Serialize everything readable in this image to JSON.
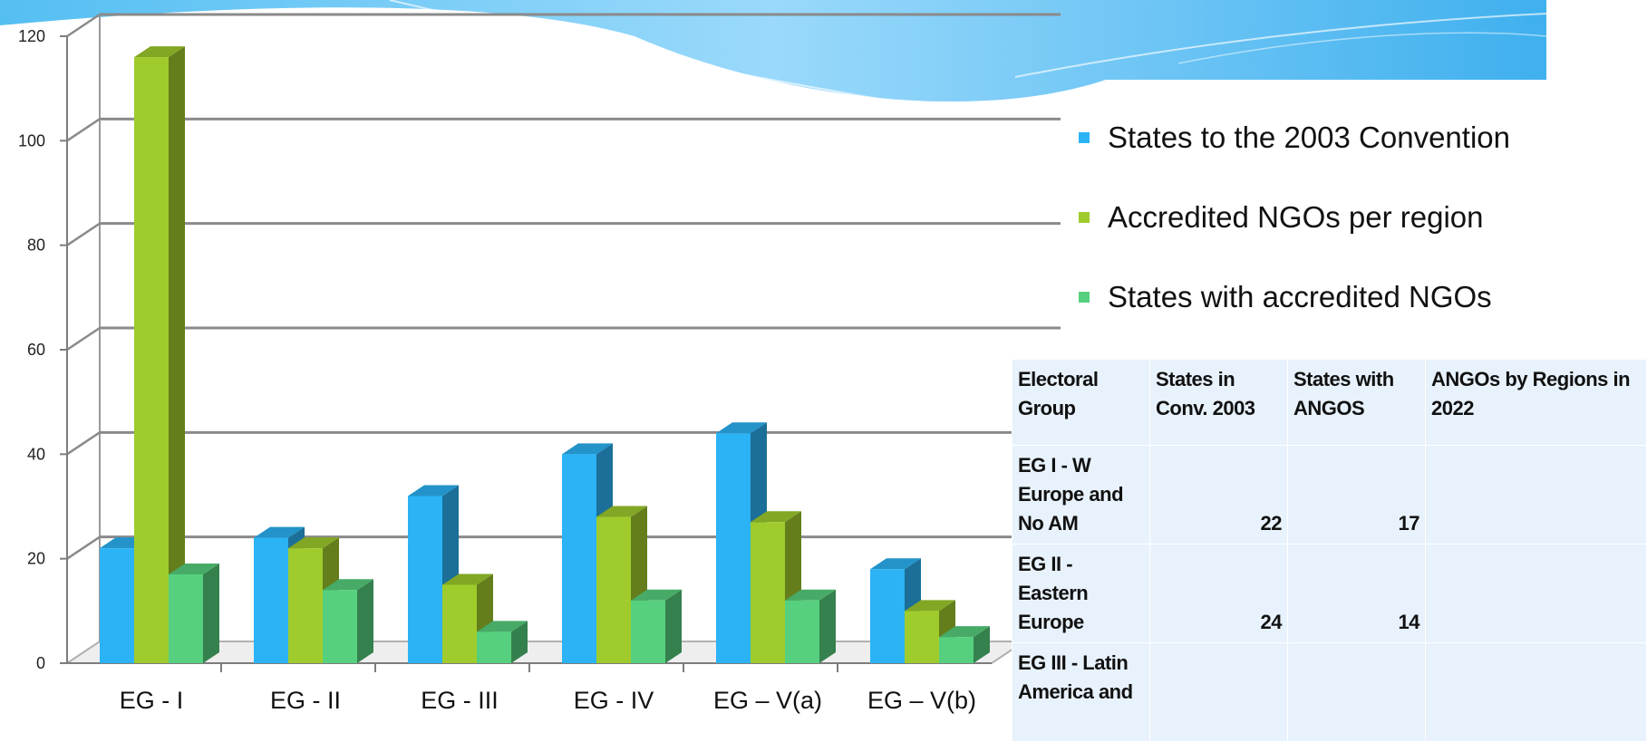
{
  "chart_data": {
    "type": "bar",
    "categories": [
      "EG - I",
      "EG - II",
      "EG - III",
      "EG - IV",
      "EG – V(a)",
      "EG – V(b)"
    ],
    "series": [
      {
        "name": "States to the 2003 Convention",
        "values": [
          22,
          24,
          32,
          40,
          44,
          18
        ],
        "color": "#2bb3f5"
      },
      {
        "name": "Accredited NGOs per region",
        "values": [
          116,
          22,
          15,
          28,
          27,
          10
        ],
        "color": "#9fcc2c"
      },
      {
        "name": "States with accredited NGOs",
        "values": [
          17,
          14,
          6,
          12,
          12,
          5
        ],
        "color": "#56d07e"
      }
    ],
    "yticks": [
      "0",
      "20",
      "40",
      "60",
      "80",
      "100",
      "120"
    ],
    "ylim": [
      0,
      120
    ],
    "grid": true,
    "legend_placement": "right",
    "three_d": true
  },
  "table": {
    "headers": [
      "Electoral Group",
      "States in Conv. 2003",
      "States with ANGOS",
      "ANGOs by Regions in 2022"
    ],
    "rows": [
      {
        "group": "EG I - W Europe and No AM",
        "states": "22",
        "angos": "17",
        "ngos": ""
      },
      {
        "group": "EG II - Eastern Europe",
        "states": "24",
        "angos": "14",
        "ngos": ""
      },
      {
        "group": "EG III - Latin America and",
        "states": "",
        "angos": "",
        "ngos": ""
      }
    ]
  }
}
